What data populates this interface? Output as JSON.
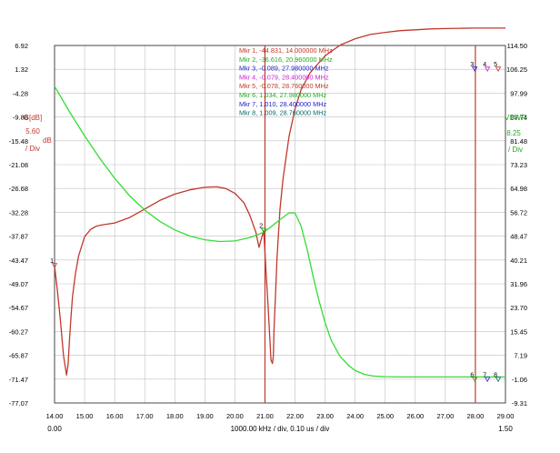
{
  "chart_data": {
    "type": "line",
    "x_axis": {
      "min": 14.0,
      "max": 29.0,
      "ticks": [
        "14.00",
        "15.00",
        "16.00",
        "17.00",
        "18.00",
        "19.00",
        "20.00",
        "21.00",
        "22.00",
        "23.00",
        "24.00",
        "25.00",
        "26.00",
        "27.00",
        "28.00",
        "29.00"
      ],
      "sub_left": "0.00",
      "sub_right": "1.50",
      "caption": "1000.00 kHz / div, 0.10 us / div"
    },
    "left_axis": {
      "min": -77.07,
      "max": 6.92,
      "ticks": [
        "6.92",
        "1.32",
        "-4.28",
        "-9.88",
        "-15.48",
        "-21.08",
        "-26.68",
        "-32.28",
        "-37.87",
        "-43.47",
        "-49.07",
        "-54.67",
        "-60.27",
        "-65.87",
        "-71.47",
        "-77.07"
      ],
      "label": "G[dB]",
      "div_value": "5.60",
      "div_unit": "dB",
      "div_text": "/ Div",
      "color": "#c0392b"
    },
    "right_axis": {
      "min": -9.31,
      "max": 114.5,
      "ticks": [
        "114.50",
        "106.25",
        "97.99",
        "89.74",
        "81.48",
        "73.23",
        "64.98",
        "56.72",
        "48.47",
        "40.21",
        "31.96",
        "23.70",
        "15.45",
        "7.19",
        "-1.06",
        "-9.31"
      ],
      "label": "VSWR",
      "div_value": "8.25",
      "div_text": "/ Div",
      "color": "#22aa22"
    },
    "series": [
      {
        "axis": "left",
        "color": "#c0392b",
        "x": [
          14.0,
          14.1,
          14.2,
          14.3,
          14.4,
          14.45,
          14.5,
          14.55,
          14.6,
          14.7,
          14.8,
          15.0,
          15.2,
          15.4,
          15.6,
          15.8,
          16.0,
          16.5,
          17.0,
          17.5,
          18.0,
          18.5,
          19.0,
          19.4,
          19.7,
          20.0,
          20.3,
          20.5,
          20.7,
          20.8,
          20.9,
          20.96,
          21.0,
          21.1,
          21.2,
          21.25,
          21.28,
          21.3,
          21.35,
          21.4,
          21.5,
          21.6,
          21.8,
          22.0,
          22.2,
          22.5,
          23.0,
          23.5,
          24.0,
          24.5,
          25.0,
          25.5,
          26.0,
          26.5,
          27.0,
          27.5,
          28.0,
          28.4,
          28.76,
          29.0
        ],
        "y": [
          -44.8,
          -51.0,
          -58.0,
          -66.0,
          -70.5,
          -68.0,
          -62.0,
          -56.5,
          -52.0,
          -46.5,
          -42.5,
          -38.0,
          -36.3,
          -35.5,
          -35.2,
          -35.0,
          -34.8,
          -33.5,
          -31.5,
          -29.5,
          -28.0,
          -27.0,
          -26.4,
          -26.3,
          -26.7,
          -27.8,
          -30.0,
          -33.0,
          -37.0,
          -40.5,
          -38.0,
          -36.6,
          -42.0,
          -54.0,
          -67.0,
          -67.8,
          -66.0,
          -60.0,
          -52.0,
          -43.0,
          -31.5,
          -24.5,
          -14.5,
          -8.0,
          -3.5,
          0.5,
          4.5,
          7.0,
          8.5,
          9.5,
          10.0,
          10.4,
          10.6,
          10.8,
          10.9,
          10.95,
          11.0,
          11.0,
          11.0,
          11.0
        ]
      },
      {
        "axis": "right",
        "color": "#33dd33",
        "x": [
          14.0,
          14.5,
          15.0,
          15.5,
          16.0,
          16.5,
          17.0,
          17.5,
          18.0,
          18.5,
          19.0,
          19.5,
          20.0,
          20.5,
          20.96,
          21.2,
          21.5,
          21.8,
          22.0,
          22.2,
          22.4,
          22.6,
          22.8,
          23.0,
          23.2,
          23.5,
          23.8,
          24.0,
          24.3,
          24.6,
          25.0,
          25.5,
          26.0,
          26.5,
          27.0,
          27.5,
          27.98,
          28.4,
          28.76,
          29.0
        ],
        "y": [
          100.4,
          91.5,
          83.2,
          75.5,
          68.5,
          62.4,
          57.5,
          53.6,
          50.6,
          48.5,
          47.2,
          46.6,
          46.8,
          48.0,
          49.8,
          51.7,
          54.2,
          56.5,
          56.5,
          52.0,
          44.0,
          34.5,
          26.0,
          18.5,
          12.5,
          6.8,
          3.5,
          1.9,
          0.6,
          0.0,
          -0.2,
          -0.3,
          -0.3,
          -0.3,
          -0.3,
          -0.3,
          -0.3,
          -0.3,
          -0.3,
          -0.3
        ]
      }
    ],
    "marker_lines": [
      21.0,
      28.0
    ],
    "markers": [
      {
        "id": "1",
        "x": 14.0,
        "y": -44.831,
        "axis": "left",
        "label": "Mkr 1, -44.831, 14.000000 MHz",
        "color": "#c0392b"
      },
      {
        "id": "2",
        "x": 20.96,
        "y": -36.616,
        "axis": "left",
        "label": "Mkr 2, -36.616, 20.960000 MHz",
        "color": "#22aa22"
      },
      {
        "id": "3",
        "x": 27.98,
        "y": 106.25,
        "axis": "right",
        "label": "Mkr 3, -0.089, 27.980000 MHz",
        "color": "#2222cc"
      },
      {
        "id": "4",
        "x": 28.4,
        "y": 106.25,
        "axis": "right",
        "label": "Mkr 4, -0.079, 28.400000 MHz",
        "color": "#cc22cc"
      },
      {
        "id": "5",
        "x": 28.76,
        "y": 106.25,
        "axis": "right",
        "label": "Mkr 5, -0.078, 28.760000 MHz",
        "color": "#c0392b"
      },
      {
        "id": "6",
        "x": 27.98,
        "y": -1.2,
        "axis": "right",
        "label": "Mkr 6, 1.034, 27.980000 MHz",
        "color": "#22aa22"
      },
      {
        "id": "7",
        "x": 28.4,
        "y": -1.2,
        "axis": "right",
        "label": "Mkr 7, 1.010, 28.400000 MHz",
        "color": "#2222cc"
      },
      {
        "id": "8",
        "x": 28.76,
        "y": -1.2,
        "axis": "right",
        "label": "Mkr 8, 1.009, 28.760000 MHz",
        "color": "#0a6a6a"
      }
    ],
    "grid": true
  }
}
